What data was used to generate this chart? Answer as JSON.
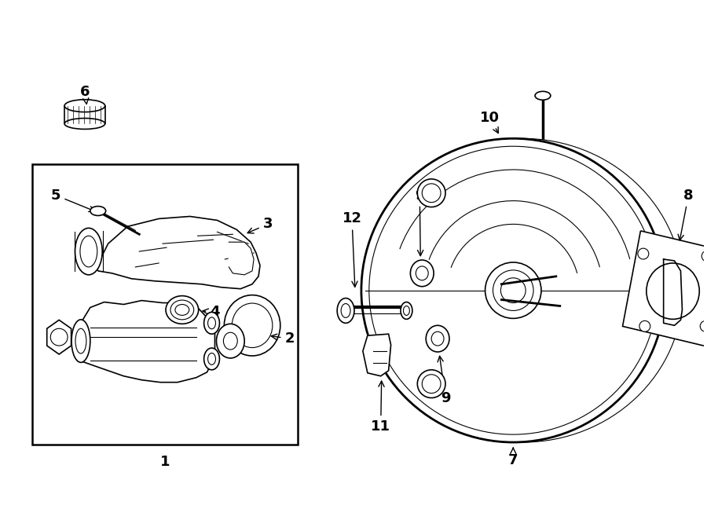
{
  "bg_color": "#ffffff",
  "line_color": "#000000",
  "label_color": "#000000",
  "fig_width": 9.0,
  "fig_height": 6.62,
  "dpi": 100
}
